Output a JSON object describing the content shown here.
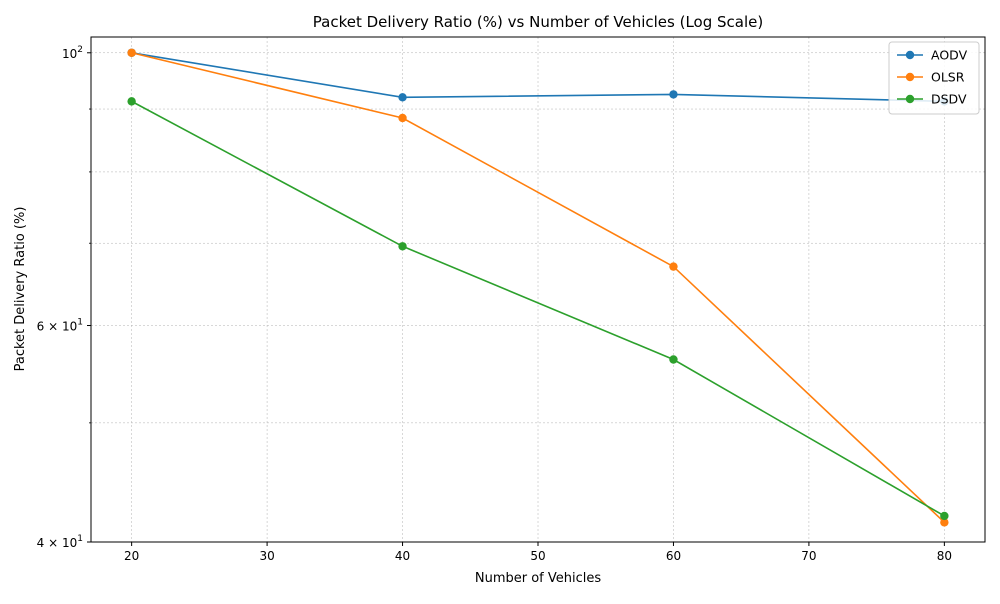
{
  "chart_data": {
    "type": "line",
    "title": "Packet Delivery Ratio (%) vs Number of Vehicles (Log Scale)",
    "xlabel": "Number of Vehicles",
    "ylabel": "Packet Delivery Ratio (%)",
    "x": [
      20,
      40,
      60,
      80
    ],
    "xlim": [
      17,
      83
    ],
    "ylim": [
      40,
      103
    ],
    "y_scale": "log",
    "x_ticks": [
      20,
      30,
      40,
      50,
      60,
      70,
      80
    ],
    "y_major_ticks": [
      {
        "value": 40,
        "label": "4 × 10",
        "exp": "1"
      },
      {
        "value": 60,
        "label": "6 × 10",
        "exp": "1"
      },
      {
        "value": 100,
        "label": "10",
        "exp": "2"
      }
    ],
    "y_minor_gridlines": [
      50,
      70,
      80,
      90
    ],
    "grid": true,
    "legend_position": "top-right",
    "series": [
      {
        "name": "AODV",
        "color": "#1f77b4",
        "values": [
          100,
          92,
          92.5,
          91.3
        ]
      },
      {
        "name": "OLSR",
        "color": "#ff7f0e",
        "values": [
          100,
          88.5,
          67,
          41.5
        ]
      },
      {
        "name": "DSDV",
        "color": "#2ca02c",
        "values": [
          91.3,
          69.6,
          56.3,
          42
        ]
      }
    ]
  }
}
